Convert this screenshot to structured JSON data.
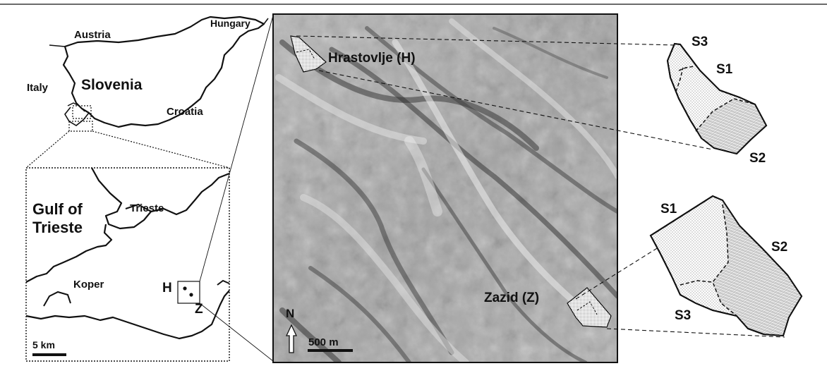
{
  "overview_map": {
    "countries": [
      "Austria",
      "Hungary",
      "Italy",
      "Slovenia",
      "Croatia"
    ]
  },
  "inset_map": {
    "labels": [
      "Gulf of",
      "Trieste",
      "Trieste",
      "Koper"
    ],
    "site_markers": {
      "h": "H",
      "z": "Z"
    },
    "scale_bar": "5 km"
  },
  "hillshade_map": {
    "sites": {
      "hrastovlje": "Hrastovlje (H)",
      "zazid": "Zazid (Z)"
    },
    "north_label": "N",
    "scale_bar": "500 m"
  },
  "detail_hrastovlje": {
    "subplots": [
      "S3",
      "S1",
      "S2"
    ]
  },
  "detail_zazid": {
    "subplots": [
      "S1",
      "S2",
      "S3"
    ]
  },
  "colors": {
    "ink": "#111111",
    "relief_mid": "#a8a8a8",
    "paper": "#ffffff"
  }
}
